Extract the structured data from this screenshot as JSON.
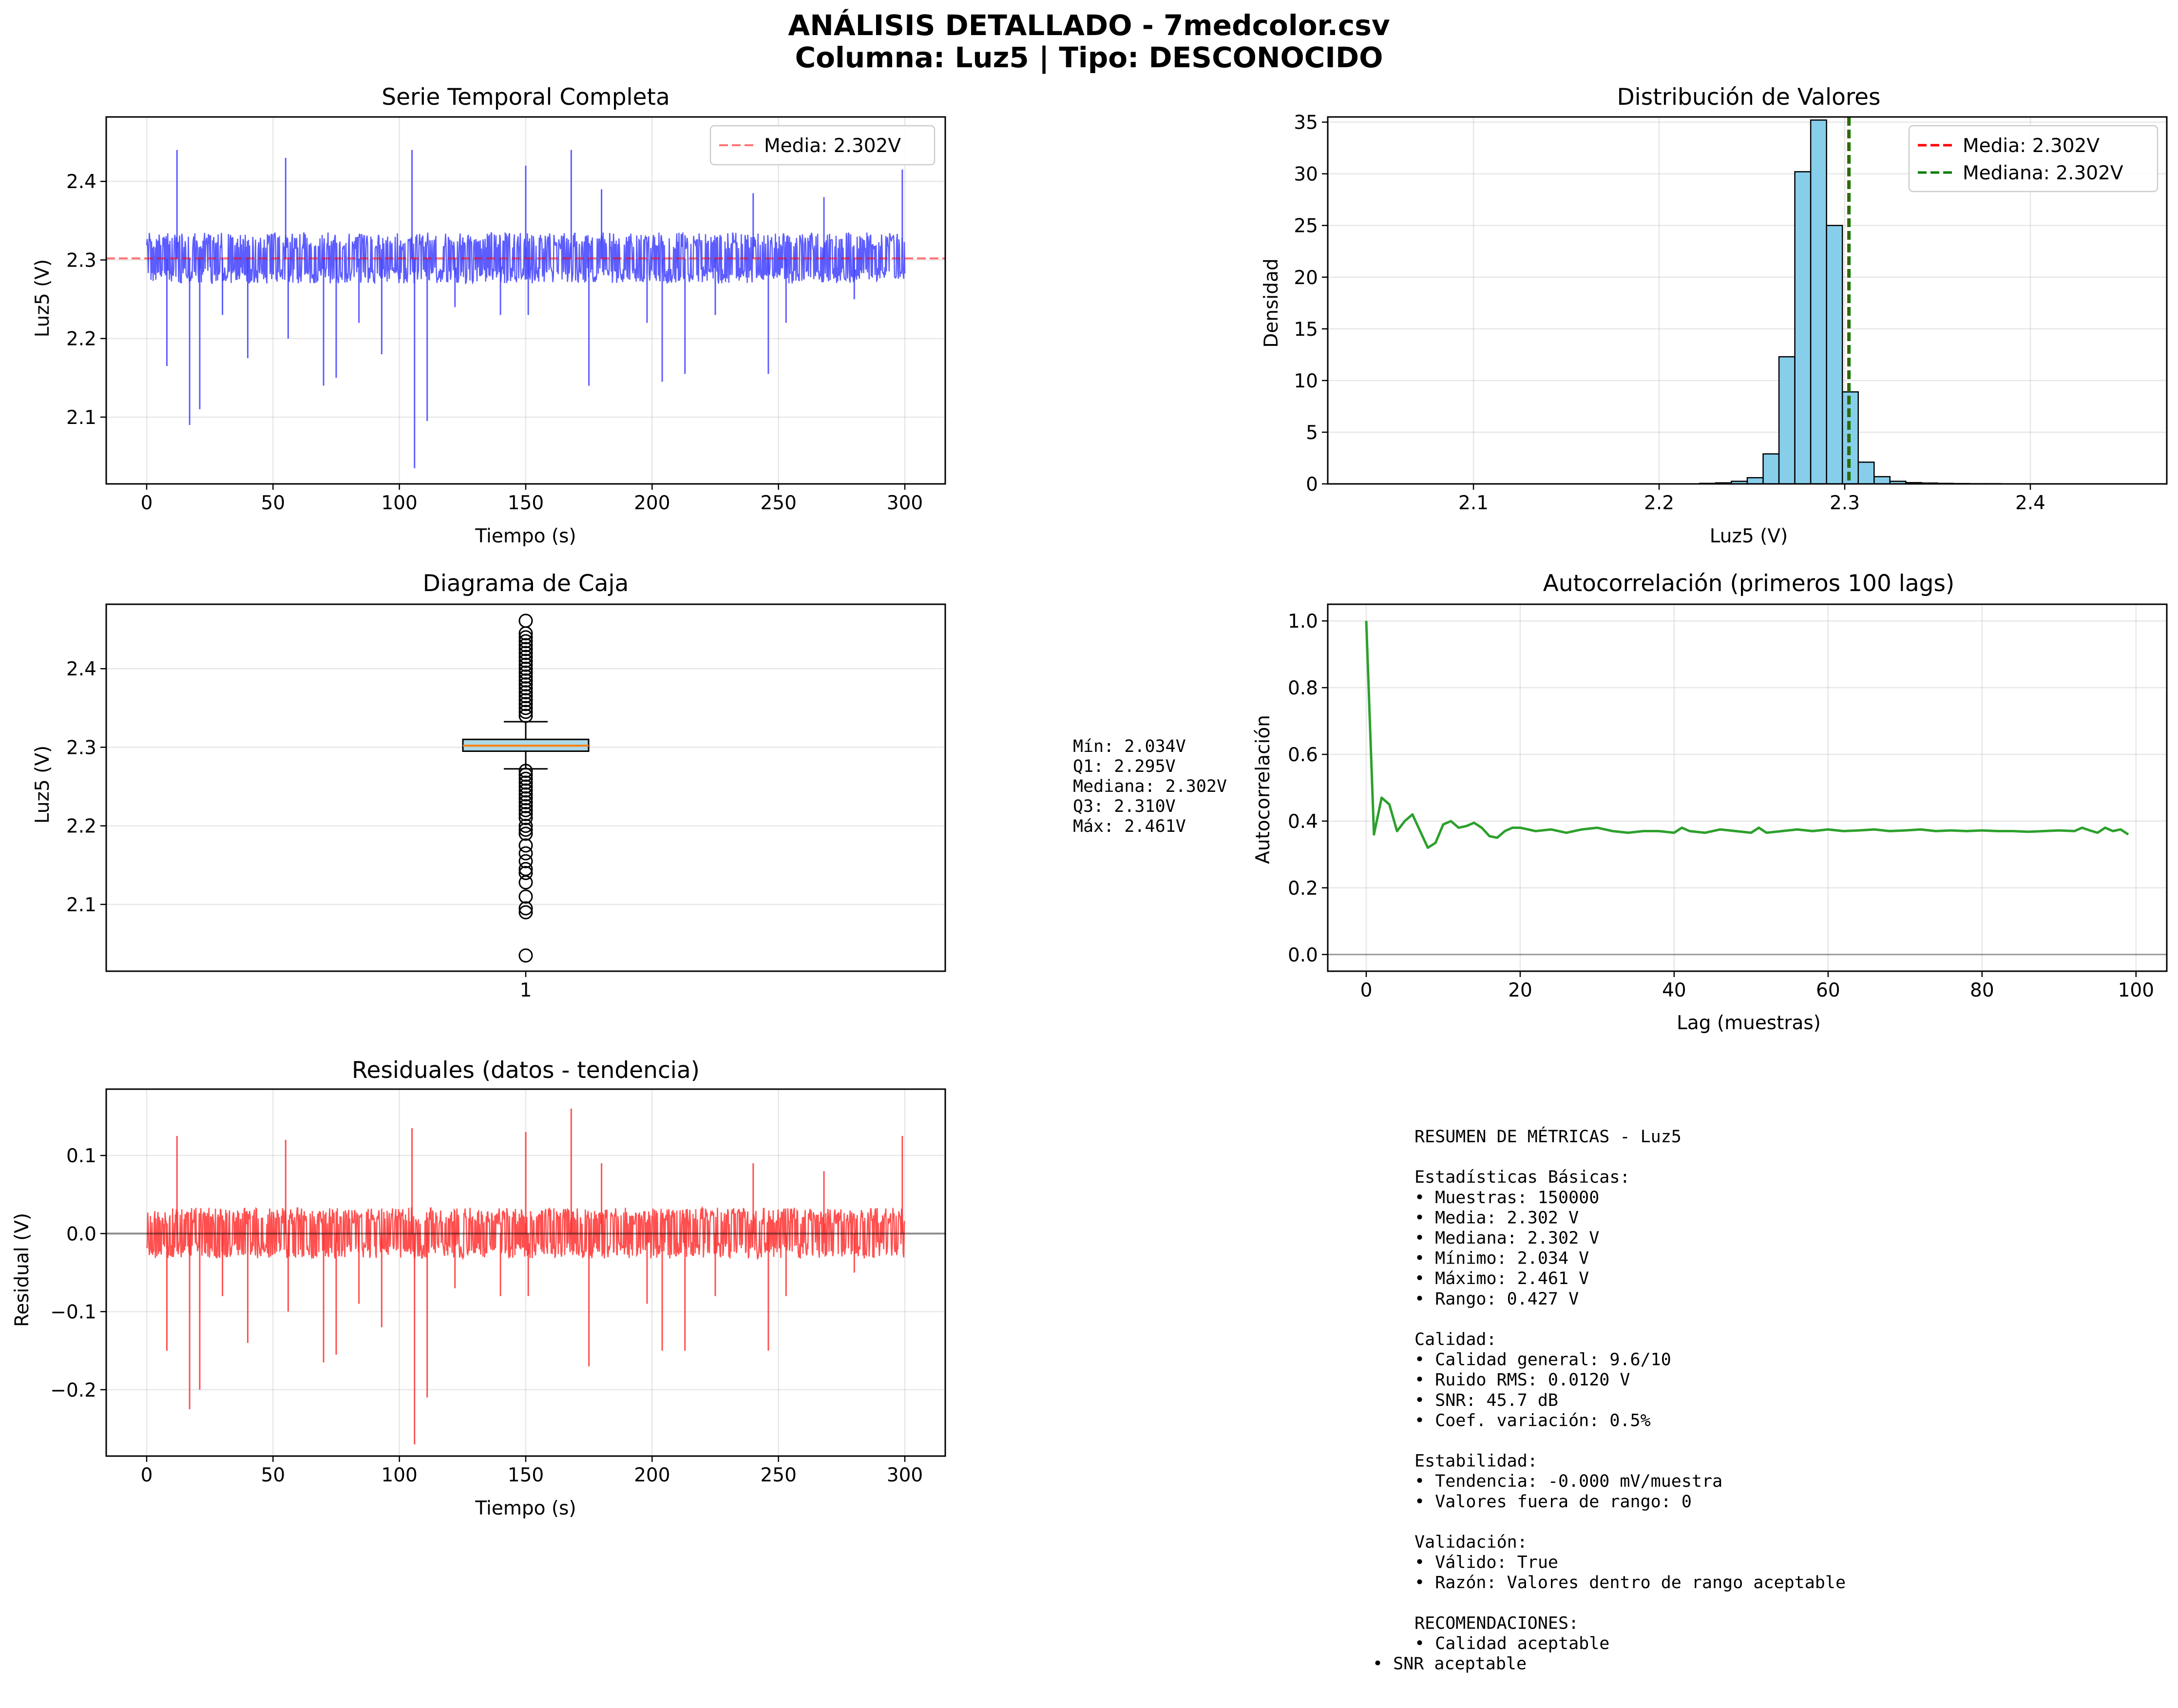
{
  "figure": {
    "title_line1": "ANÁLISIS DETALLADO - 7medcolor.csv",
    "title_line2": "Columna: Luz5 | Tipo: DESCONOCIDO"
  },
  "colors": {
    "series_blue": "#4040ff",
    "mean_line_red": "#ff0000",
    "median_line_green": "#007f00",
    "hist_fill": "#87ceeb",
    "acf_green": "#2ca02c",
    "residual_red": "#ff3030",
    "box_fill": "#add8e6",
    "box_median": "#ff7f0e"
  },
  "chart_data": [
    {
      "id": "serie_temporal",
      "type": "line",
      "title": "Serie Temporal Completa",
      "xlabel": "Tiempo (s)",
      "ylabel": "Luz5 (V)",
      "xlim": [
        -16,
        316
      ],
      "ylim": [
        2.015,
        2.482
      ],
      "xticks": [
        0,
        50,
        100,
        150,
        200,
        250,
        300
      ],
      "yticks": [
        2.1,
        2.2,
        2.3,
        2.4
      ],
      "ytick_labels": [
        "2.1",
        "2.2",
        "2.3",
        "2.4"
      ],
      "grid": true,
      "legend": {
        "placement": "upper-right",
        "entries": [
          "Media: 2.302V"
        ]
      },
      "mean": 2.302,
      "band": {
        "typical_low": 2.27,
        "typical_high": 2.335
      },
      "spikes": [
        [
          8,
          2.165
        ],
        [
          12,
          2.44
        ],
        [
          17,
          2.09
        ],
        [
          21,
          2.11
        ],
        [
          30,
          2.23
        ],
        [
          40,
          2.175
        ],
        [
          55,
          2.43
        ],
        [
          56,
          2.2
        ],
        [
          70,
          2.14
        ],
        [
          75,
          2.15
        ],
        [
          84,
          2.22
        ],
        [
          93,
          2.18
        ],
        [
          105,
          2.44
        ],
        [
          106,
          2.035
        ],
        [
          111,
          2.095
        ],
        [
          122,
          2.24
        ],
        [
          140,
          2.23
        ],
        [
          150,
          2.42
        ],
        [
          151,
          2.23
        ],
        [
          168,
          2.44
        ],
        [
          175,
          2.14
        ],
        [
          180,
          2.39
        ],
        [
          198,
          2.22
        ],
        [
          204,
          2.145
        ],
        [
          213,
          2.155
        ],
        [
          225,
          2.23
        ],
        [
          240,
          2.385
        ],
        [
          246,
          2.155
        ],
        [
          253,
          2.22
        ],
        [
          268,
          2.38
        ],
        [
          280,
          2.25
        ],
        [
          299,
          2.415
        ]
      ]
    },
    {
      "id": "distribucion",
      "type": "bar",
      "title": "Distribución de Valores",
      "xlabel": "Luz5 (V)",
      "ylabel": "Densidad",
      "xlim": [
        2.0215,
        2.4735
      ],
      "ylim": [
        0,
        35.5
      ],
      "xticks": [
        2.1,
        2.2,
        2.3,
        2.4
      ],
      "xtick_labels": [
        "2.1",
        "2.2",
        "2.3",
        "2.4"
      ],
      "yticks": [
        0,
        5,
        10,
        15,
        20,
        25,
        30,
        35
      ],
      "grid": true,
      "legend": {
        "placement": "upper-right",
        "entries": [
          "Media: 2.302V",
          "Mediana: 2.302V"
        ]
      },
      "mean": 2.302,
      "median": 2.302,
      "bin_start": 2.034,
      "bin_width": 0.00854,
      "bin_heights": [
        0,
        0,
        0,
        0,
        0,
        0,
        0,
        0,
        0,
        0,
        0,
        0,
        0,
        0,
        0,
        0,
        0,
        0,
        0,
        0,
        0,
        0,
        0.05,
        0.1,
        0.25,
        0.6,
        2.9,
        12.3,
        30.2,
        35.2,
        25.0,
        8.9,
        2.1,
        0.7,
        0.25,
        0.12,
        0.08,
        0.05,
        0.03,
        0.02,
        0.02,
        0.01,
        0.01,
        0.01,
        0.01,
        0.01,
        0.01,
        0.01,
        0.01,
        0.01
      ]
    },
    {
      "id": "caja",
      "type": "box",
      "title": "Diagrama de Caja",
      "ylabel": "Luz5 (V)",
      "xtick_labels": [
        "1"
      ],
      "ylim": [
        2.015,
        2.482
      ],
      "yticks": [
        2.1,
        2.2,
        2.3,
        2.4
      ],
      "ytick_labels": [
        "2.1",
        "2.2",
        "2.3",
        "2.4"
      ],
      "grid": true,
      "q1": 2.295,
      "median": 2.302,
      "q3": 2.31,
      "whisker_low": 2.2725,
      "whisker_high": 2.3325,
      "min": 2.034,
      "max": 2.461,
      "outliers_high": [
        2.34,
        2.345,
        2.35,
        2.355,
        2.36,
        2.365,
        2.37,
        2.375,
        2.38,
        2.385,
        2.39,
        2.395,
        2.4,
        2.405,
        2.41,
        2.415,
        2.42,
        2.425,
        2.43,
        2.435,
        2.44,
        2.445,
        2.461
      ],
      "outliers_low": [
        2.27,
        2.265,
        2.26,
        2.255,
        2.25,
        2.245,
        2.24,
        2.235,
        2.23,
        2.225,
        2.22,
        2.215,
        2.21,
        2.2,
        2.195,
        2.19,
        2.175,
        2.165,
        2.155,
        2.145,
        2.14,
        2.128,
        2.11,
        2.095,
        2.09,
        2.035
      ]
    },
    {
      "id": "autocorrelacion",
      "type": "line",
      "title": "Autocorrelación (primeros 100 lags)",
      "xlabel": "Lag (muestras)",
      "ylabel": "Autocorrelación",
      "xlim": [
        -5,
        104
      ],
      "ylim": [
        -0.05,
        1.05
      ],
      "xticks": [
        0,
        20,
        40,
        60,
        80,
        100
      ],
      "yticks": [
        0.0,
        0.2,
        0.4,
        0.6,
        0.8,
        1.0
      ],
      "ytick_labels": [
        "0.0",
        "0.2",
        "0.4",
        "0.6",
        "0.8",
        "1.0"
      ],
      "grid": true,
      "baseline": 0.0,
      "x": [
        0,
        1,
        2,
        3,
        4,
        5,
        6,
        7,
        8,
        9,
        10,
        11,
        12,
        13,
        14,
        15,
        16,
        17,
        18,
        19,
        20,
        22,
        24,
        26,
        28,
        30,
        32,
        34,
        36,
        38,
        40,
        41,
        42,
        44,
        46,
        48,
        50,
        51,
        52,
        54,
        56,
        58,
        60,
        62,
        64,
        66,
        68,
        70,
        72,
        74,
        76,
        78,
        80,
        82,
        84,
        86,
        88,
        90,
        92,
        93,
        94,
        95,
        96,
        97,
        98,
        99
      ],
      "y": [
        1.0,
        0.36,
        0.47,
        0.45,
        0.37,
        0.4,
        0.42,
        0.37,
        0.32,
        0.335,
        0.39,
        0.4,
        0.38,
        0.385,
        0.395,
        0.38,
        0.355,
        0.35,
        0.37,
        0.38,
        0.38,
        0.37,
        0.375,
        0.365,
        0.375,
        0.38,
        0.37,
        0.365,
        0.37,
        0.37,
        0.365,
        0.38,
        0.37,
        0.365,
        0.375,
        0.37,
        0.365,
        0.38,
        0.365,
        0.37,
        0.375,
        0.37,
        0.375,
        0.37,
        0.372,
        0.375,
        0.37,
        0.372,
        0.375,
        0.37,
        0.372,
        0.37,
        0.372,
        0.37,
        0.37,
        0.368,
        0.37,
        0.372,
        0.37,
        0.38,
        0.372,
        0.365,
        0.38,
        0.37,
        0.375,
        0.36
      ]
    },
    {
      "id": "residuales",
      "type": "line",
      "title": "Residuales (datos - tendencia)",
      "xlabel": "Tiempo (s)",
      "ylabel": "Residual (V)",
      "xlim": [
        -16,
        316
      ],
      "ylim": [
        -0.285,
        0.185
      ],
      "xticks": [
        0,
        50,
        100,
        150,
        200,
        250,
        300
      ],
      "yticks": [
        -0.2,
        -0.1,
        0.0,
        0.1
      ],
      "ytick_labels": [
        "−0.2",
        "−0.1",
        "0.0",
        "0.1"
      ],
      "grid": true,
      "baseline": 0.0,
      "band": {
        "typical_low": -0.032,
        "typical_high": 0.033
      },
      "spikes": [
        [
          8,
          -0.15
        ],
        [
          12,
          0.125
        ],
        [
          17,
          -0.225
        ],
        [
          21,
          -0.2
        ],
        [
          30,
          -0.08
        ],
        [
          40,
          -0.14
        ],
        [
          55,
          0.12
        ],
        [
          56,
          -0.1
        ],
        [
          70,
          -0.165
        ],
        [
          75,
          -0.155
        ],
        [
          84,
          -0.09
        ],
        [
          93,
          -0.12
        ],
        [
          105,
          0.135
        ],
        [
          106,
          -0.27
        ],
        [
          111,
          -0.21
        ],
        [
          122,
          -0.07
        ],
        [
          140,
          -0.08
        ],
        [
          150,
          0.13
        ],
        [
          151,
          -0.08
        ],
        [
          168,
          0.16
        ],
        [
          175,
          -0.17
        ],
        [
          180,
          0.09
        ],
        [
          198,
          -0.09
        ],
        [
          204,
          -0.15
        ],
        [
          213,
          -0.15
        ],
        [
          225,
          -0.08
        ],
        [
          240,
          0.09
        ],
        [
          246,
          -0.15
        ],
        [
          253,
          -0.08
        ],
        [
          268,
          0.08
        ],
        [
          280,
          -0.05
        ],
        [
          299,
          0.125
        ]
      ]
    }
  ],
  "box_stats_text": [
    "Mín: 2.034V",
    "Q1: 2.295V",
    "Mediana: 2.302V",
    "Q3: 2.310V",
    "Máx: 2.461V"
  ],
  "summary_text": [
    "RESUMEN DE MÉTRICAS - Luz5",
    "",
    "Estadísticas Básicas:",
    "• Muestras: 150000",
    "• Media: 2.302 V",
    "• Mediana: 2.302 V",
    "• Mínimo: 2.034 V",
    "• Máximo: 2.461 V",
    "• Rango: 0.427 V",
    "",
    "Calidad:",
    "• Calidad general: 9.6/10",
    "• Ruido RMS: 0.0120 V",
    "• SNR: 45.7 dB",
    "• Coef. variación: 0.5%",
    "",
    "Estabilidad:",
    "• Tendencia: -0.000 mV/muestra",
    "• Valores fuera de rango: 0",
    "",
    "Validación:",
    "• Válido: True",
    "• Razón: Valores dentro de rango aceptable",
    "",
    "RECOMENDACIONES:",
    "• Calidad aceptable",
    "• SNR aceptable"
  ]
}
